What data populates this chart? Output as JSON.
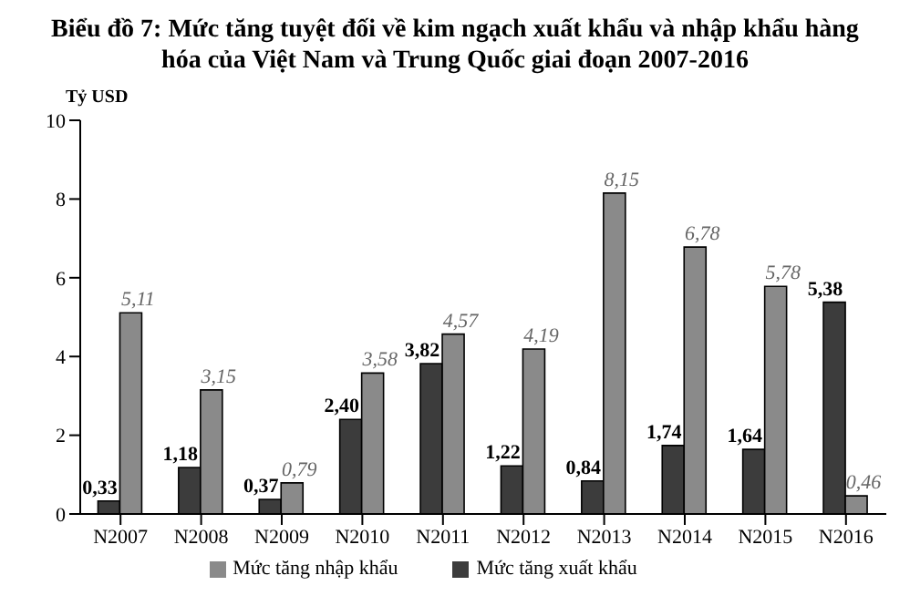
{
  "chart_data": {
    "type": "bar",
    "title": "Biểu đồ 7: Mức tăng tuyệt đối về kim ngạch xuất khẩu và nhập khẩu hàng hóa của Việt Nam và Trung Quốc giai đoạn 2007-2016",
    "ylabel": "Tỷ USD",
    "categories": [
      "N2007",
      "N2008",
      "N2009",
      "N2010",
      "N2011",
      "N2012",
      "N2013",
      "N2014",
      "N2015",
      "N2016"
    ],
    "series": [
      {
        "name": "Mức tăng xuất khẩu",
        "color": "#3c3c3c",
        "values": [
          0.33,
          1.18,
          0.37,
          2.4,
          3.82,
          1.22,
          0.84,
          1.74,
          1.64,
          5.38
        ],
        "value_labels": [
          "0,33",
          "1,18",
          "0,37",
          "2,40",
          "3,82",
          "1,22",
          "0,84",
          "1,74",
          "1,64",
          "5,38"
        ]
      },
      {
        "name": "Mức tăng nhập khẩu",
        "color": "#8a8a8a",
        "values": [
          5.11,
          3.15,
          0.79,
          3.58,
          4.57,
          4.19,
          8.15,
          6.78,
          5.78,
          0.46
        ],
        "value_labels": [
          "5,11",
          "3,15",
          "0,79",
          "3,58",
          "4,57",
          "4,19",
          "8,15",
          "6,78",
          "5,78",
          "0,46"
        ]
      }
    ],
    "ylim": [
      0,
      10
    ],
    "yticks": [
      0,
      2,
      4,
      6,
      8,
      10
    ],
    "grid": false,
    "legend": "bottom"
  }
}
